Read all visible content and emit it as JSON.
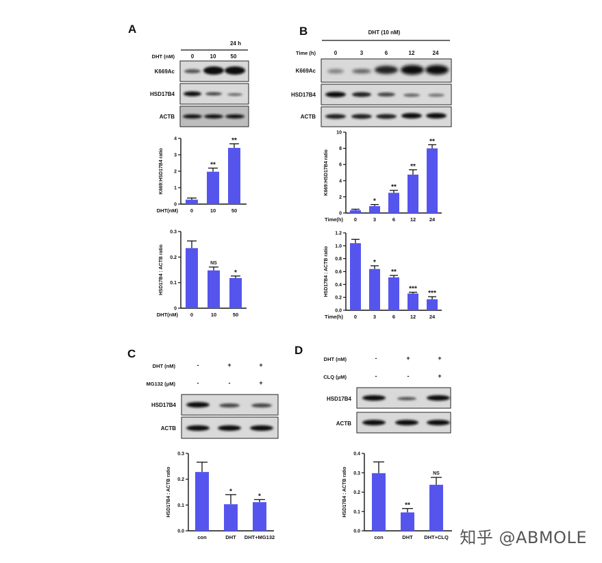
{
  "colors": {
    "bar": "#5555ee",
    "band": "#1a1a1a",
    "blot_bg": "#d9d9d9"
  },
  "panels": {
    "A": {
      "letter": "A",
      "header": "24 h",
      "row_label": "DHT (nM)",
      "conditions": [
        "0",
        "10",
        "50"
      ],
      "blots": [
        "K669Ac",
        "HSD17B4",
        "ACTB"
      ]
    },
    "B": {
      "letter": "B",
      "header": "DHT (10 nM)",
      "row_label": "Time (h)",
      "conditions": [
        "0",
        "3",
        "6",
        "12",
        "24"
      ],
      "blots": [
        "K669Ac",
        "HSD17B4",
        "ACTB"
      ]
    },
    "C": {
      "letter": "C",
      "rows": [
        {
          "label": "DHT (nM)",
          "values": [
            "-",
            "+",
            "+"
          ]
        },
        {
          "label": "MG132 (μM)",
          "values": [
            "-",
            "-",
            "+"
          ]
        }
      ],
      "blots": [
        "HSD17B4",
        "ACTB"
      ]
    },
    "D": {
      "letter": "D",
      "rows": [
        {
          "label": "DHT (nM)",
          "values": [
            "-",
            "+",
            "+"
          ]
        },
        {
          "label": "CLQ (μM)",
          "values": [
            "-",
            "-",
            "+"
          ]
        }
      ],
      "blots": [
        "HSD17B4",
        "ACTB"
      ]
    }
  },
  "chart_data": [
    {
      "id": "A1",
      "type": "bar",
      "ylabel": "K669:HSD17B4 ratio",
      "xlabel": "DHT(nM)",
      "categories": [
        "0",
        "10",
        "50"
      ],
      "values": [
        0.27,
        1.97,
        3.42
      ],
      "errors": [
        0.1,
        0.22,
        0.25
      ],
      "annotations": [
        "",
        "**",
        "**"
      ],
      "ylim": [
        0,
        4
      ],
      "yticks": [
        0,
        1,
        2,
        3,
        4
      ]
    },
    {
      "id": "A2",
      "type": "bar",
      "ylabel": "HSD17B4 : ACTB ratio",
      "xlabel": "DHT(nM)",
      "categories": [
        "0",
        "10",
        "50"
      ],
      "values": [
        0.235,
        0.148,
        0.118
      ],
      "errors": [
        0.028,
        0.013,
        0.008
      ],
      "annotations": [
        "",
        "NS",
        "*"
      ],
      "ylim": [
        0,
        0.3
      ],
      "yticks": [
        0,
        0.1,
        0.2,
        0.3
      ]
    },
    {
      "id": "B1",
      "type": "bar",
      "ylabel": "K669:HSD17B4 ratio",
      "xlabel": "Time(h)",
      "categories": [
        "0",
        "3",
        "6",
        "12",
        "24"
      ],
      "values": [
        0.35,
        0.85,
        2.5,
        4.75,
        8.0
      ],
      "errors": [
        0.12,
        0.2,
        0.3,
        0.6,
        0.45
      ],
      "annotations": [
        "",
        "*",
        "**",
        "**",
        "**"
      ],
      "ylim": [
        0,
        10
      ],
      "yticks": [
        0,
        2,
        4,
        6,
        8,
        10
      ]
    },
    {
      "id": "B2",
      "type": "bar",
      "ylabel": "HSD17B4 : ACTB ratio",
      "xlabel": "Time(h)",
      "categories": [
        "0",
        "3",
        "6",
        "12",
        "24"
      ],
      "values": [
        1.04,
        0.64,
        0.51,
        0.26,
        0.17
      ],
      "errors": [
        0.06,
        0.05,
        0.03,
        0.02,
        0.04
      ],
      "annotations": [
        "",
        "*",
        "**",
        "***",
        "***"
      ],
      "ylim": [
        0,
        1.2
      ],
      "yticks": [
        0.0,
        0.2,
        0.4,
        0.6,
        0.8,
        1.0,
        1.2
      ]
    },
    {
      "id": "C1",
      "type": "bar",
      "ylabel": "HSD17B4 : ACTB ratio",
      "xlabel": "",
      "categories": [
        "con",
        "DHT",
        "DHT+MG132"
      ],
      "values": [
        0.228,
        0.103,
        0.111
      ],
      "errors": [
        0.038,
        0.037,
        0.01
      ],
      "annotations": [
        "",
        "*",
        "*"
      ],
      "ylim": [
        0,
        0.3
      ],
      "yticks": [
        0.0,
        0.1,
        0.2,
        0.3
      ]
    },
    {
      "id": "D1",
      "type": "bar",
      "ylabel": "HSD17B4 : ACTB ratio",
      "xlabel": "",
      "categories": [
        "con",
        "DHT",
        "DHT+CLQ"
      ],
      "values": [
        0.298,
        0.095,
        0.238
      ],
      "errors": [
        0.058,
        0.02,
        0.038
      ],
      "annotations": [
        "",
        "**",
        "NS"
      ],
      "ylim": [
        0,
        0.4
      ],
      "yticks": [
        0.0,
        0.1,
        0.2,
        0.3,
        0.4
      ]
    }
  ],
  "watermark": "知乎 @ABMOLE"
}
